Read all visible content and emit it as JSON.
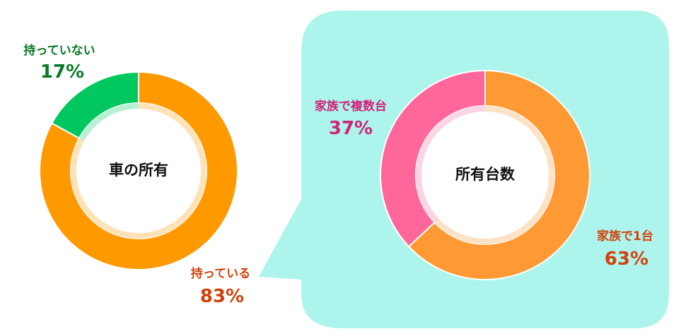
{
  "colors": {
    "bubble": "#adf5ec",
    "own_yes": "#ff9900",
    "own_no": "#00c85f",
    "one_car": "#ff9933",
    "multi_car": "#ff6699",
    "label_orange": "#d2420a",
    "label_green": "#0a7a28",
    "label_pink": "#d2237a"
  },
  "chart_data": [
    {
      "type": "pie",
      "title": "車の所有",
      "slices": [
        {
          "label": "持っている",
          "value": 83,
          "value_text": "83%",
          "color": "#ff9900"
        },
        {
          "label": "持っていない",
          "value": 17,
          "value_text": "17%",
          "color": "#00c85f"
        }
      ]
    },
    {
      "type": "pie",
      "title": "所有台数",
      "slices": [
        {
          "label": "家族で1台",
          "value": 63,
          "value_text": "63%",
          "color": "#ff9933"
        },
        {
          "label": "家族で複数台",
          "value": 37,
          "value_text": "37%",
          "color": "#ff6699"
        }
      ]
    }
  ]
}
